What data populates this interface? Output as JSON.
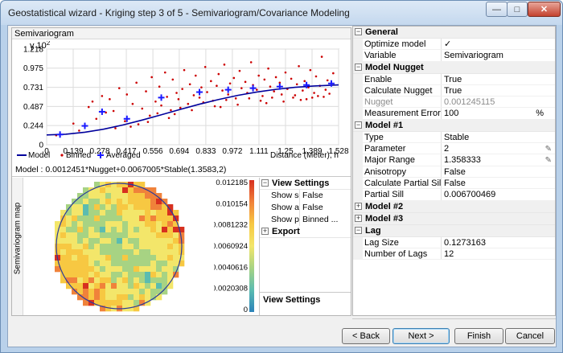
{
  "window": {
    "title": "Geostatistical wizard - Kriging step 3 of 5 - Semivariogram/Covariance Modeling",
    "controls": {
      "minimize": "—",
      "maximize": "□",
      "close": "✕"
    }
  },
  "semivariogram": {
    "header": "Semivariogram",
    "y_label": "γ",
    "y_multiplier": "10",
    "y_exponent": "2",
    "x_axis_label": "Distance (Meter), h",
    "legend": {
      "model": "Model",
      "binned": "Binned",
      "averaged": "Averaged"
    },
    "formula": "Model : 0.0012451*Nugget+0.0067005*Stable(1.3583,2)"
  },
  "chart_data": {
    "type": "scatter",
    "title": "Semivariogram",
    "xlabel": "Distance (Meter), h",
    "ylabel": "γ 10²",
    "xlim": [
      0,
      1.528
    ],
    "ylim": [
      0,
      1.218
    ],
    "x_ticks": [
      "0",
      "0.139",
      "0.278",
      "0.417",
      "0.556",
      "0.694",
      "0.833",
      "0.972",
      "1.111",
      "1.25",
      "1.389",
      "1.528"
    ],
    "y_ticks": [
      "0",
      "0.244",
      "0.487",
      "0.731",
      "0.975",
      "1.218"
    ],
    "grid": true,
    "legend_position": "bottom",
    "series": [
      {
        "name": "Model",
        "kind": "line",
        "color": "#00009c",
        "x": [
          0,
          0.1,
          0.2,
          0.3,
          0.4,
          0.5,
          0.6,
          0.7,
          0.8,
          0.9,
          1.0,
          1.1,
          1.2,
          1.3,
          1.4,
          1.528
        ],
        "y": [
          0.125,
          0.134,
          0.159,
          0.199,
          0.252,
          0.314,
          0.381,
          0.45,
          0.516,
          0.576,
          0.628,
          0.671,
          0.705,
          0.731,
          0.748,
          0.762
        ]
      },
      {
        "name": "Binned",
        "kind": "points",
        "color": "#cc0000",
        "x": [
          0.05,
          0.14,
          0.17,
          0.22,
          0.24,
          0.26,
          0.29,
          0.31,
          0.33,
          0.36,
          0.38,
          0.41,
          0.42,
          0.45,
          0.47,
          0.5,
          0.52,
          0.54,
          0.55,
          0.57,
          0.59,
          0.6,
          0.62,
          0.63,
          0.65,
          0.66,
          0.68,
          0.69,
          0.71,
          0.72,
          0.74,
          0.75,
          0.77,
          0.78,
          0.8,
          0.81,
          0.83,
          0.84,
          0.86,
          0.87,
          0.89,
          0.9,
          0.92,
          0.93,
          0.95,
          0.96,
          0.98,
          0.99,
          1.01,
          1.02,
          1.04,
          1.05,
          1.07,
          1.08,
          1.1,
          1.11,
          1.13,
          1.14,
          1.16,
          1.17,
          1.19,
          1.2,
          1.22,
          1.23,
          1.25,
          1.26,
          1.28,
          1.29,
          1.31,
          1.32,
          1.34,
          1.35,
          1.37,
          1.38,
          1.4,
          1.41,
          1.43,
          1.44,
          1.46,
          1.47,
          1.49,
          1.5,
          0.48,
          0.58,
          0.7,
          0.82,
          0.94,
          1.06,
          1.18,
          1.3,
          1.42,
          0.35,
          0.64,
          0.88,
          1.12,
          1.36,
          1.48,
          0.53,
          0.76,
          1.0,
          1.24,
          1.39,
          0.44,
          0.67,
          0.91,
          1.15,
          1.33,
          1.45
        ],
        "y": [
          0.12,
          0.27,
          0.18,
          0.48,
          0.55,
          0.33,
          0.62,
          0.41,
          0.58,
          0.21,
          0.72,
          0.3,
          0.64,
          0.52,
          0.79,
          0.46,
          0.68,
          0.37,
          0.86,
          0.55,
          0.74,
          0.5,
          0.92,
          0.61,
          0.44,
          0.83,
          0.66,
          0.58,
          0.71,
          0.95,
          0.52,
          0.77,
          0.63,
          0.88,
          0.6,
          0.73,
          0.99,
          0.67,
          0.81,
          0.56,
          0.75,
          0.9,
          0.69,
          1.02,
          0.64,
          0.78,
          0.85,
          0.59,
          0.94,
          0.72,
          0.8,
          0.66,
          1.05,
          0.76,
          0.7,
          0.88,
          0.62,
          0.83,
          0.97,
          0.74,
          0.68,
          0.86,
          0.79,
          0.64,
          0.92,
          0.71,
          0.84,
          0.6,
          0.77,
          1.0,
          0.69,
          0.81,
          0.73,
          0.95,
          0.66,
          0.87,
          0.75,
          1.12,
          0.7,
          0.82,
          0.78,
          0.91,
          0.26,
          0.4,
          0.47,
          0.54,
          0.57,
          0.59,
          0.6,
          0.63,
          0.62,
          0.43,
          0.34,
          0.49,
          0.56,
          0.58,
          0.65,
          0.29,
          0.44,
          0.51,
          0.55,
          0.6,
          0.23,
          0.39,
          0.48,
          0.53,
          0.57,
          0.61
        ]
      },
      {
        "name": "Averaged",
        "kind": "crosses",
        "color": "#1a1aff",
        "x": [
          0.07,
          0.2,
          0.29,
          0.42,
          0.6,
          0.8,
          0.95,
          1.08,
          1.22,
          1.36,
          1.49
        ],
        "y": [
          0.13,
          0.24,
          0.42,
          0.33,
          0.6,
          0.67,
          0.7,
          0.72,
          0.74,
          0.76,
          0.78
        ]
      }
    ]
  },
  "map": {
    "side_label": "Semivariogram map",
    "colorbar_labels": [
      "0.012185",
      "0.010154",
      "0.0081232",
      "0.0060924",
      "0.0040616",
      "0.0020308",
      "0"
    ],
    "colorbar_colors": [
      "#d7301f",
      "#f0823a",
      "#f7c842",
      "#f3e66a",
      "#a7d383",
      "#5bbcb0",
      "#2b83ba"
    ],
    "seed": 7
  },
  "view_settings_panel": {
    "header": "View Settings",
    "rows": [
      {
        "name": "Show se...",
        "value": "False"
      },
      {
        "name": "Show all l...",
        "value": "False"
      },
      {
        "name": "Show poi...",
        "value": "Binned ..."
      }
    ],
    "export_header": "Export",
    "footer_title": "View Settings"
  },
  "properties": {
    "sections": [
      {
        "title": "General",
        "toggle": "−",
        "rows": [
          {
            "name": "Optimize model",
            "value": "✓",
            "icon": "optimize-icon"
          },
          {
            "name": "Variable",
            "value": "Semivariogram"
          }
        ]
      },
      {
        "title": "Model Nugget",
        "toggle": "−",
        "rows": [
          {
            "name": "Enable",
            "value": "True"
          },
          {
            "name": "Calculate Nugget",
            "value": "True"
          },
          {
            "name": "Nugget",
            "value": "0.001245115",
            "disabled": true
          },
          {
            "name": "Measurement Error",
            "value": "100",
            "unit": "%"
          }
        ]
      },
      {
        "title": "Model #1",
        "toggle": "−",
        "rows": [
          {
            "name": "Type",
            "value": "Stable"
          },
          {
            "name": "Parameter",
            "value": "2",
            "pencil": true
          },
          {
            "name": "Major Range",
            "value": "1.358333",
            "pencil": true
          },
          {
            "name": "Anisotropy",
            "value": "False"
          },
          {
            "name": "Calculate Partial Sill",
            "value": "False"
          },
          {
            "name": "Partial Sill",
            "value": "0.006700469"
          }
        ]
      },
      {
        "title": "Model #2",
        "toggle": "+",
        "rows": []
      },
      {
        "title": "Model #3",
        "toggle": "+",
        "rows": []
      },
      {
        "title": "Lag",
        "toggle": "−",
        "rows": [
          {
            "name": "Lag Size",
            "value": "0.1273163"
          },
          {
            "name": "Number of Lags",
            "value": "12"
          }
        ]
      }
    ]
  },
  "buttons": {
    "back": "< Back",
    "next": "Next >",
    "finish": "Finish",
    "cancel": "Cancel"
  }
}
